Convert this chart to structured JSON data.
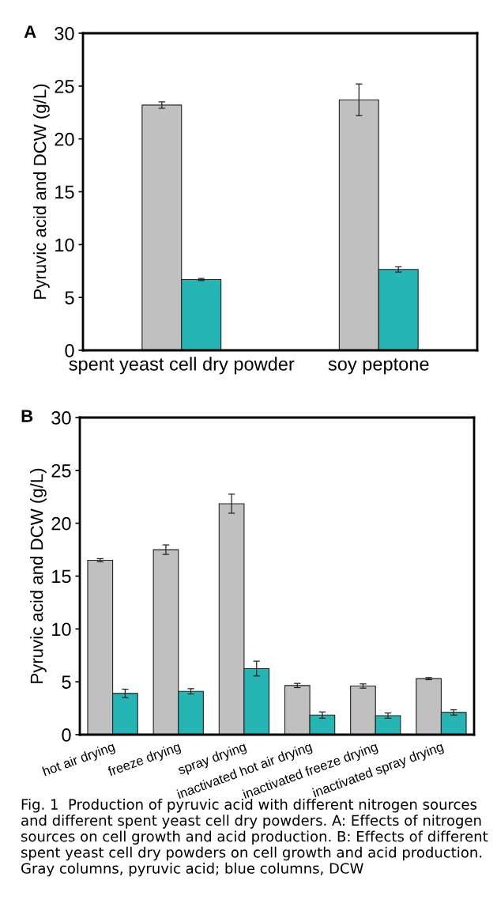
{
  "chart_data": [
    {
      "type": "bar",
      "title": "A",
      "ylabel": "Pyruvic acid and DCW (g/L)",
      "categories": [
        "spent yeast cell dry powder",
        "soy peptone"
      ],
      "ylim": [
        0,
        30
      ],
      "yticks": [
        0,
        5,
        10,
        15,
        20,
        25,
        30
      ],
      "grid": false,
      "series": [
        {
          "color": "#c0c0c0",
          "values": [
            23.2,
            23.7
          ],
          "errors": [
            0.3,
            1.5
          ]
        },
        {
          "color": "#26b5b5",
          "values": [
            6.7,
            7.65
          ],
          "errors": [
            0.1,
            0.25
          ]
        }
      ]
    },
    {
      "type": "bar",
      "title": "B",
      "ylabel": "Pyruvic acid and DCW (g/L)",
      "categories": [
        "hot air drying",
        "freeze drying",
        "spray drying",
        "inactivated hot air drying",
        "inactivated freeze drying",
        "inactivated spray drying"
      ],
      "ylim": [
        0,
        30
      ],
      "yticks": [
        0,
        5,
        10,
        15,
        20,
        25,
        30
      ],
      "grid": false,
      "series": [
        {
          "color": "#c0c0c0",
          "values": [
            16.5,
            17.5,
            21.85,
            4.65,
            4.6,
            5.3
          ],
          "errors": [
            0.15,
            0.45,
            0.9,
            0.2,
            0.2,
            0.1
          ]
        },
        {
          "color": "#26b5b5",
          "values": [
            3.9,
            4.1,
            6.25,
            1.85,
            1.8,
            2.1
          ],
          "errors": [
            0.4,
            0.25,
            0.7,
            0.3,
            0.25,
            0.25
          ]
        }
      ],
      "annotations": [
        "Fig. 1  Production of pyruvic acid with different nitrogen sources and different spent yeast cell dry powders. A: Effects of nitrogen sources on cell growth and acid production. B: Effects of different spent yeast cell dry powders on cell growth and acid production. Gray columns, pyruvic acid; blue columns, DCW"
      ]
    }
  ]
}
